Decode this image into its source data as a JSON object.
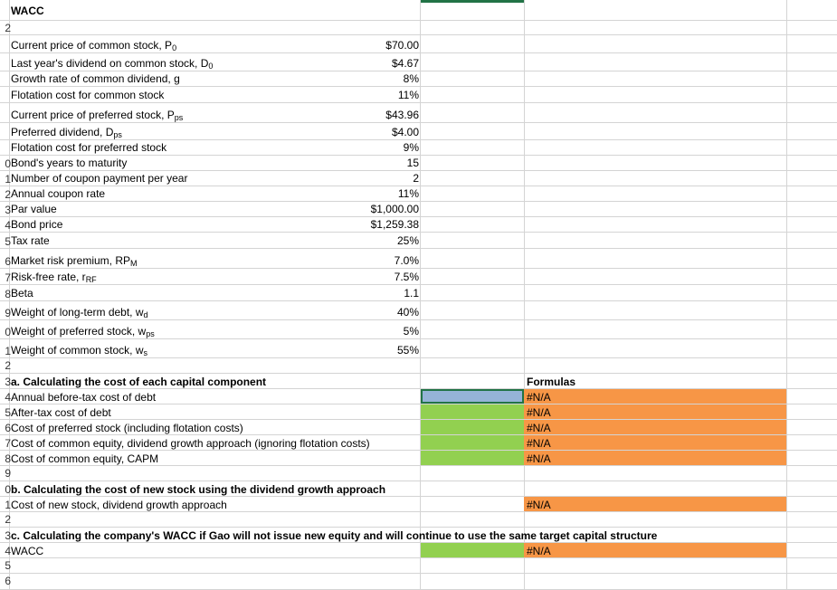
{
  "title": "WACC",
  "inputs": [
    {
      "row": "",
      "label_main": "Current price of common stock, P",
      "label_sub": "0",
      "value": "$70.00"
    },
    {
      "row": "",
      "label_main": "Last year's dividend on common stock, D",
      "label_sub": "0",
      "value": "$4.67"
    },
    {
      "row": "",
      "label_main": "Growth rate of common dividend, g",
      "label_sub": "",
      "value": "8%"
    },
    {
      "row": "",
      "label_main": "Flotation cost for common stock",
      "label_sub": "",
      "value": "11%"
    },
    {
      "row": "",
      "label_main": "Current price of preferred stock, P",
      "label_sub": "ps",
      "value": "$43.96"
    },
    {
      "row": "",
      "label_main": "Preferred dividend, D",
      "label_sub": "ps",
      "value": "$4.00"
    },
    {
      "row": "",
      "label_main": "Flotation cost for preferred stock",
      "label_sub": "",
      "value": "9%"
    },
    {
      "row": "0",
      "label_main": "Bond's years to maturity",
      "label_sub": "",
      "value": "15"
    },
    {
      "row": "1",
      "label_main": "Number of coupon payment per year",
      "label_sub": "",
      "value": "2"
    },
    {
      "row": "2",
      "label_main": "Annual coupon rate",
      "label_sub": "",
      "value": "11%"
    },
    {
      "row": "3",
      "label_main": "Par value",
      "label_sub": "",
      "value": "$1,000.00"
    },
    {
      "row": "4",
      "label_main": "Bond price",
      "label_sub": "",
      "value": "$1,259.38"
    },
    {
      "row": "5",
      "label_main": "Tax rate",
      "label_sub": "",
      "value": "25%"
    },
    {
      "row": "6",
      "label_main": "Market risk premium, RP",
      "label_sub": "M",
      "value": "7.0%"
    },
    {
      "row": "7",
      "label_main": "Risk-free rate, r",
      "label_sub": "RF",
      "value": "7.5%"
    },
    {
      "row": "8",
      "label_main": "Beta",
      "label_sub": "",
      "value": "1.1"
    },
    {
      "row": "9",
      "label_main": "Weight of long-term debt, w",
      "label_sub": "d",
      "value": "40%"
    },
    {
      "row": "0",
      "label_main": "Weight of preferred stock, w",
      "label_sub": "ps",
      "value": "5%"
    },
    {
      "row": "1",
      "label_main": "Weight of common stock, w",
      "label_sub": "s",
      "value": "55%"
    }
  ],
  "section_a": {
    "heading": "a. Calculating the cost of each capital component",
    "formulas_header": "Formulas",
    "items": [
      {
        "row": "4",
        "label": "Annual before-tax cost of debt",
        "formula": "#N/A"
      },
      {
        "row": "5",
        "label": "After-tax cost of debt",
        "formula": "#N/A"
      },
      {
        "row": "6",
        "label": "Cost of preferred stock (including flotation costs)",
        "formula": "#N/A"
      },
      {
        "row": "7",
        "label": "Cost of common equity, dividend growth approach (ignoring flotation costs)",
        "formula": "#N/A"
      },
      {
        "row": "8",
        "label": "Cost of common equity, CAPM",
        "formula": "#N/A"
      }
    ]
  },
  "section_b": {
    "heading": "b. Calculating the cost of new stock using the dividend growth approach",
    "label": "Cost of new stock, dividend growth approach",
    "formula": "#N/A"
  },
  "section_c": {
    "heading": "c. Calculating the company's WACC if Gao will not issue new equity and will continue to use the same target capital structure",
    "label": "WACC",
    "formula": "#N/A"
  },
  "row_numbers": {
    "blank1": "2",
    "a_head": "3",
    "blank2": "9",
    "b_head": "0",
    "b_item": "1",
    "blank3": "2",
    "c_head": "3",
    "c_item": "4",
    "e1": "5",
    "e2": "6"
  },
  "colors": {
    "input_green": "#92d050",
    "formula_orange": "#f79646",
    "selected_blue": "#95b3d7"
  }
}
